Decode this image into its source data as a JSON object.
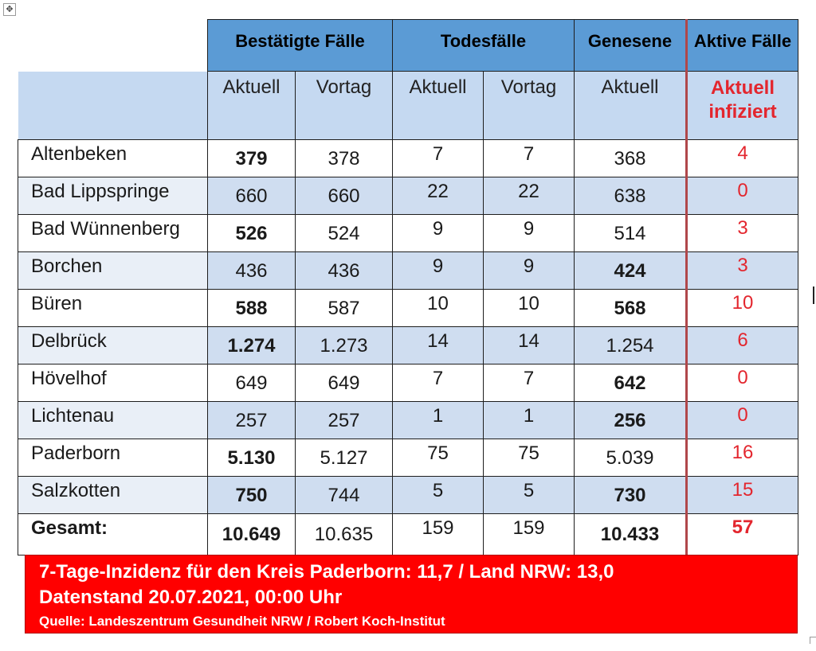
{
  "colors": {
    "header_blue": "#5b9bd5",
    "subheader_blue": "#c5d9f1",
    "row_shade": "#cfddf0",
    "active_red": "#e3262e",
    "footer_red": "#ff0000"
  },
  "icons": {
    "move_handle": "move-handle-icon"
  },
  "header": {
    "confirmed": "Bestätigte Fälle",
    "deaths": "Todesfälle",
    "recovered": "Genesene",
    "active": "Aktive Fälle",
    "current": "Aktuell",
    "previous": "Vortag",
    "active_sub": "Aktuell infiziert"
  },
  "rows": [
    {
      "name": "Altenbeken",
      "conf_cur": "379",
      "conf_prev": "378",
      "death_cur": "7",
      "death_prev": "7",
      "recovered": "368",
      "active": "4"
    },
    {
      "name": "Bad Lippspringe",
      "conf_cur": "660",
      "conf_prev": "660",
      "death_cur": "22",
      "death_prev": "22",
      "recovered": "638",
      "active": "0"
    },
    {
      "name": "Bad Wünnenberg",
      "conf_cur": "526",
      "conf_prev": "524",
      "death_cur": "9",
      "death_prev": "9",
      "recovered": "514",
      "active": "3"
    },
    {
      "name": "Borchen",
      "conf_cur": "436",
      "conf_prev": "436",
      "death_cur": "9",
      "death_prev": "9",
      "recovered": "424",
      "active": "3"
    },
    {
      "name": "Büren",
      "conf_cur": "588",
      "conf_prev": "587",
      "death_cur": "10",
      "death_prev": "10",
      "recovered": "568",
      "active": "10"
    },
    {
      "name": "Delbrück",
      "conf_cur": "1.274",
      "conf_prev": "1.273",
      "death_cur": "14",
      "death_prev": "14",
      "recovered": "1.254",
      "active": "6"
    },
    {
      "name": "Hövelhof",
      "conf_cur": "649",
      "conf_prev": "649",
      "death_cur": "7",
      "death_prev": "7",
      "recovered": "642",
      "active": "0"
    },
    {
      "name": "Lichtenau",
      "conf_cur": "257",
      "conf_prev": "257",
      "death_cur": "1",
      "death_prev": "1",
      "recovered": "256",
      "active": "0"
    },
    {
      "name": "Paderborn",
      "conf_cur": "5.130",
      "conf_prev": "5.127",
      "death_cur": "75",
      "death_prev": "75",
      "recovered": "5.039",
      "active": "16"
    },
    {
      "name": "Salzkotten",
      "conf_cur": "750",
      "conf_prev": "744",
      "death_cur": "5",
      "death_prev": "5",
      "recovered": "730",
      "active": "15"
    }
  ],
  "total": {
    "label": "Gesamt:",
    "conf_cur": "10.649",
    "conf_prev": "10.635",
    "death_cur": "159",
    "death_prev": "159",
    "recovered": "10.433",
    "active": "57"
  },
  "footer": {
    "incidence": "7-Tage-Inzidenz für den Kreis Paderborn: 11,7 / Land NRW: 13,0",
    "date": "Datenstand 20.07.2021, 00:00 Uhr",
    "source": "Quelle: Landeszentrum Gesundheit NRW / Robert Koch-Institut"
  }
}
